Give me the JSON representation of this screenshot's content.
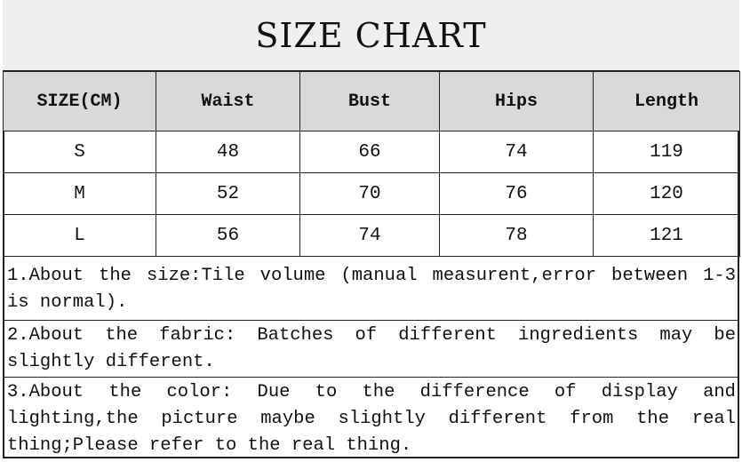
{
  "title": "SIZE CHART",
  "columns": [
    "SIZE(CM)",
    "Waist",
    "Bust",
    "Hips",
    "Length"
  ],
  "rows": [
    [
      "S",
      "48",
      "66",
      "74",
      "119"
    ],
    [
      "M",
      "52",
      "70",
      "76",
      "120"
    ],
    [
      "L",
      "56",
      "74",
      "78",
      "121"
    ]
  ],
  "notes": [
    "1.About the size:Tile volume (manual measurent,error between 1-3 is normal).",
    "2.About the fabric: Batches of different ingredients may be slightly different.",
    "3.About the color: Due to the difference of display and lighting,the picture maybe slightly different from the real thing;Please refer to the real thing."
  ],
  "colors": {
    "title_bg": "#efefef",
    "header_bg": "#d9d9d9",
    "border": "#222222"
  }
}
